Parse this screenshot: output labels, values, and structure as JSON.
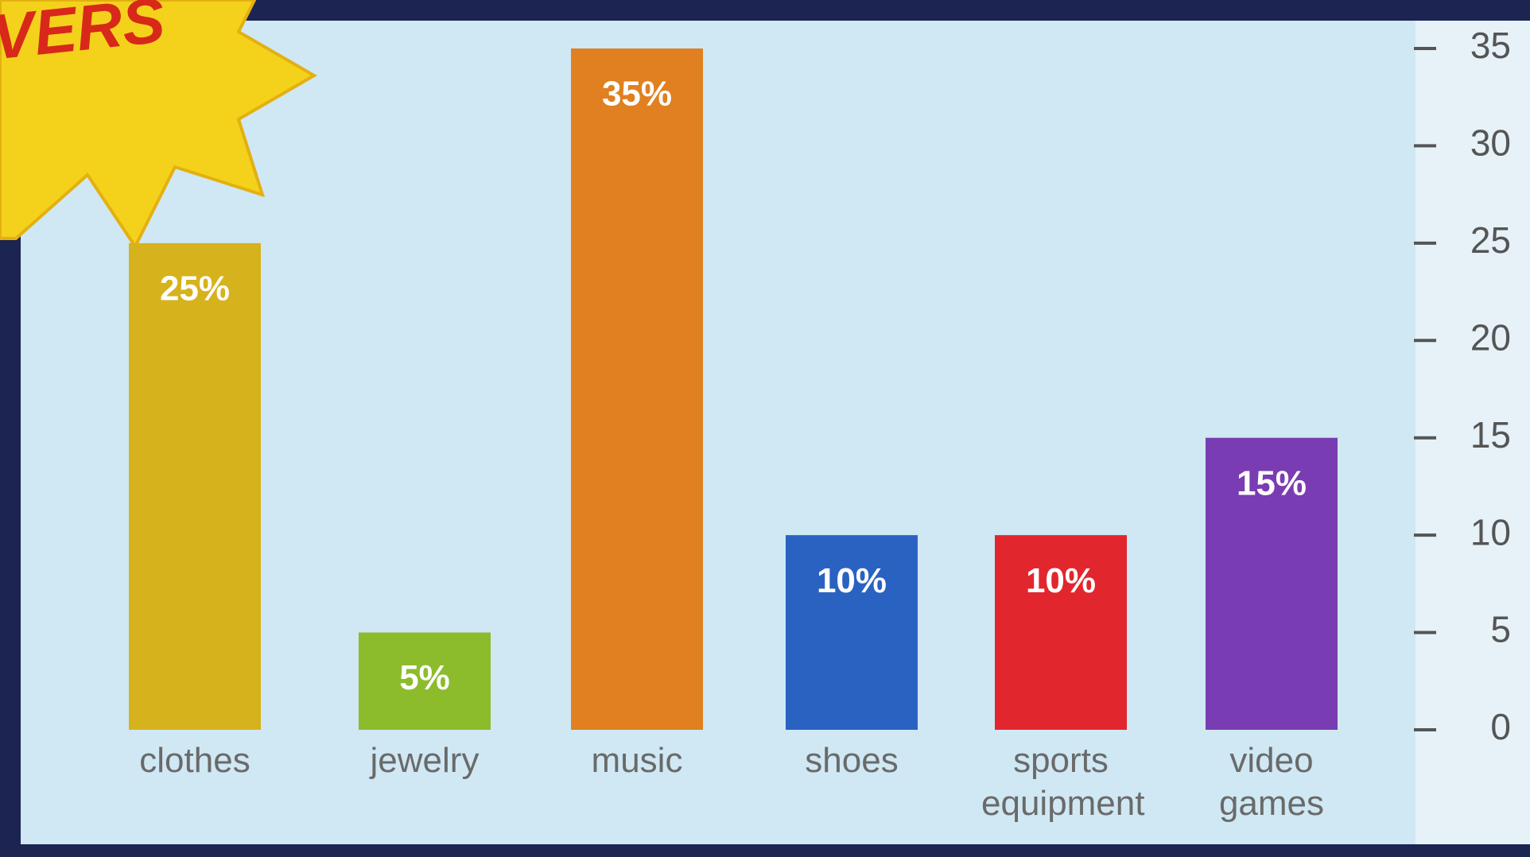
{
  "chart_data": {
    "type": "bar",
    "annotation": "VERS",
    "categories": [
      "clothes",
      "jewelry",
      "music",
      "shoes",
      "sports equipment",
      "video games"
    ],
    "values": [
      25,
      5,
      35,
      10,
      10,
      15
    ],
    "value_labels": [
      "25%",
      "5%",
      "35%",
      "10%",
      "10%",
      "15%"
    ],
    "colors": [
      "#d6b21c",
      "#8cbc2c",
      "#e08020",
      "#2a62c2",
      "#e2262e",
      "#7a3cb2"
    ],
    "ylim": [
      0,
      35
    ],
    "yticks": [
      0,
      5,
      10,
      15,
      20,
      25,
      30,
      35
    ],
    "y_axis_side": "right"
  }
}
